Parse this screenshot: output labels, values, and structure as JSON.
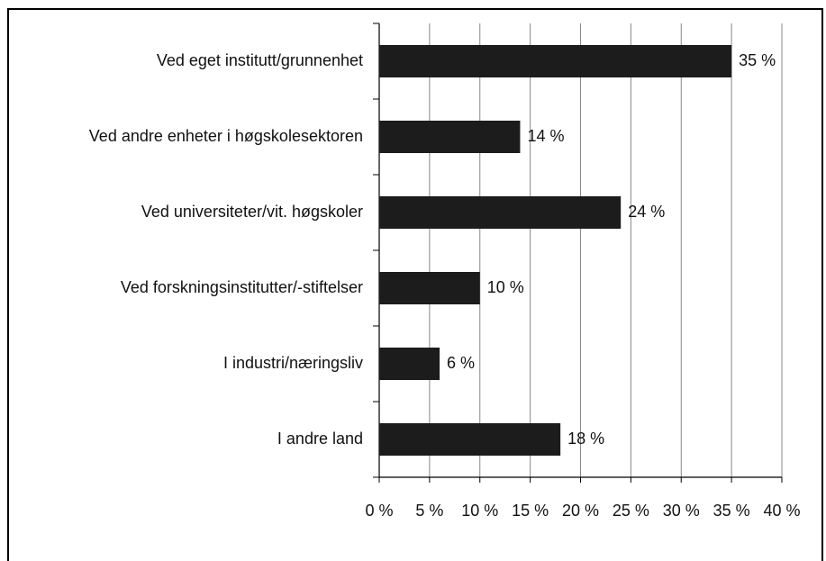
{
  "chart_data": {
    "type": "bar",
    "orientation": "horizontal",
    "categories": [
      "Ved eget institutt/grunnenhet",
      "Ved andre enheter i høgskolesektoren",
      "Ved universiteter/vit. høgskoler",
      "Ved forskningsinstitutter/-stiftelser",
      "I industri/næringsliv",
      "I andre land"
    ],
    "values": [
      35,
      14,
      24,
      10,
      6,
      18
    ],
    "value_labels": [
      "35 %",
      "14 %",
      "24 %",
      "10 %",
      "6 %",
      "18 %"
    ],
    "color": "#1c1c1c",
    "xlim": [
      0,
      40
    ],
    "xticks": [
      {
        "value": 0,
        "label": "0 %"
      },
      {
        "value": 5,
        "label": "5 %"
      },
      {
        "value": 10,
        "label": "10 %"
      },
      {
        "value": 15,
        "label": "15 %"
      },
      {
        "value": 20,
        "label": "20 %"
      },
      {
        "value": 25,
        "label": "25 %"
      },
      {
        "value": 30,
        "label": "30 %"
      },
      {
        "value": 35,
        "label": "35 %"
      },
      {
        "value": 40,
        "label": "40 %"
      }
    ],
    "grid": true
  }
}
